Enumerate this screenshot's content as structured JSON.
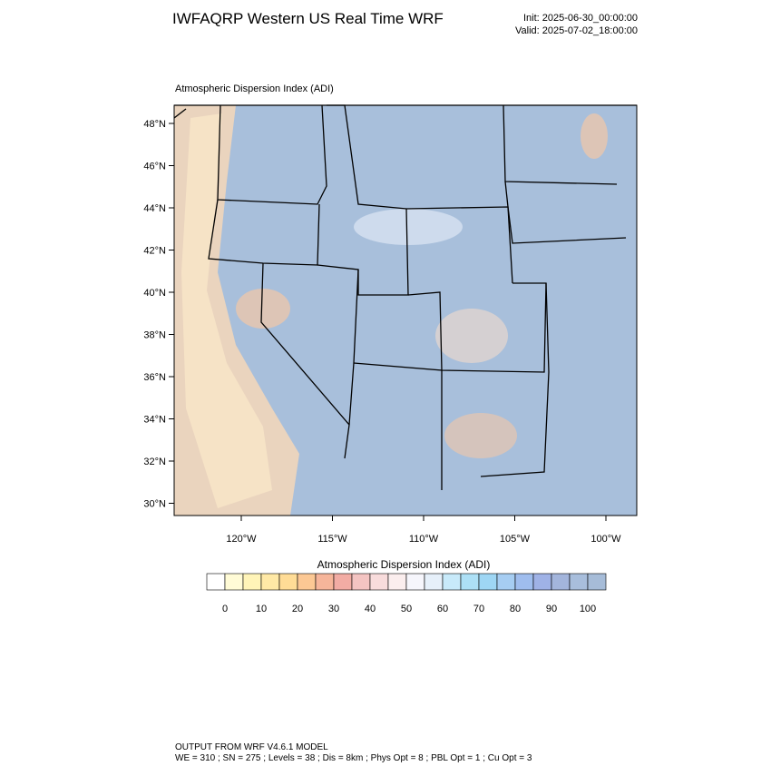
{
  "header": {
    "title": "IWFAQRP Western US Real Time WRF",
    "init": "Init: 2025-06-30_00:00:00",
    "valid": "Valid: 2025-07-02_18:00:00"
  },
  "map": {
    "subtitle": "Atmospheric Dispersion Index   (ADI)",
    "lat_labels": [
      "48°N",
      "46°N",
      "44°N",
      "42°N",
      "40°N",
      "38°N",
      "36°N",
      "34°N",
      "32°N",
      "30°N"
    ],
    "lon_labels": [
      "120°W",
      "115°W",
      "110°W",
      "105°W",
      "100°W"
    ]
  },
  "colorbar": {
    "title": "Atmospheric Dispersion Index  (ADI)",
    "labels": [
      0,
      10,
      20,
      30,
      40,
      50,
      60,
      70,
      80,
      90,
      100
    ],
    "colors": [
      "#ffffff",
      "#fffbd6",
      "#fff4b8",
      "#ffe9a6",
      "#ffdc96",
      "#fcc894",
      "#f6b59a",
      "#f2aca4",
      "#f4c4c2",
      "#f8dcdc",
      "#fbeeee",
      "#f6f6fc",
      "#e6f0fa",
      "#c8eafa",
      "#ade0f6",
      "#9ed6f4",
      "#a6cdf2",
      "#9fbdee",
      "#9fb2e6",
      "#a3b5dc",
      "#a8bedc",
      "#a6bcd8"
    ]
  },
  "footer": {
    "line1": "OUTPUT FROM WRF V4.6.1 MODEL",
    "line2": "WE = 310 ; SN = 275 ; Levels = 38 ; Dis = 8km ; Phys Opt = 8 ; PBL Opt = 1 ; Cu Opt = 3"
  }
}
